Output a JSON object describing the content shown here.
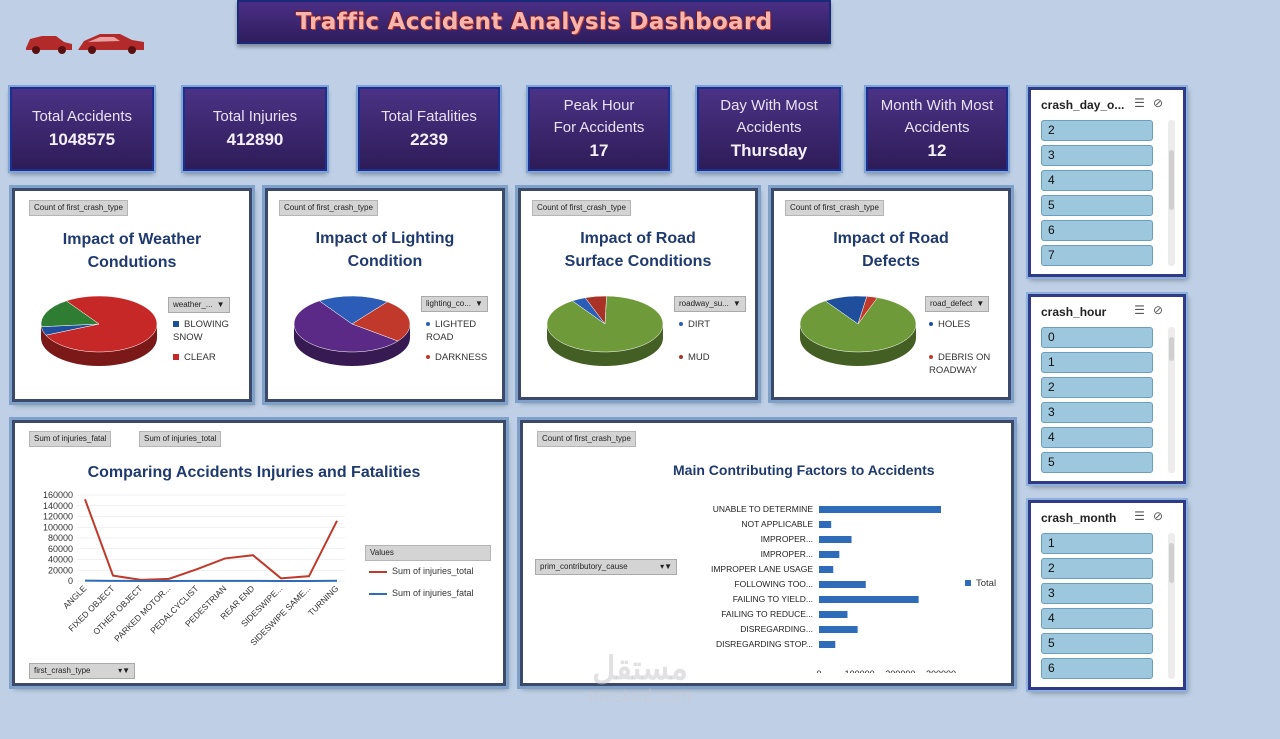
{
  "header": {
    "title": "Traffic Accident Analysis Dashboard"
  },
  "kpis": [
    {
      "label": "Total Accidents",
      "value": "1048575"
    },
    {
      "label": "Total Injuries",
      "value": "412890"
    },
    {
      "label": "Total Fatalities",
      "value": "2239"
    },
    {
      "label": "Peak Hour For Accidents",
      "value": "17"
    },
    {
      "label": "Day With Most Accidents",
      "value": "Thursday"
    },
    {
      "label": "Month With Most Accidents",
      "value": "12"
    }
  ],
  "weather": {
    "tag": "Count of first_crash_type",
    "title": "Impact of Weather Condutions",
    "filter": "weather_...",
    "legend": [
      "BLOWING SNOW",
      "CLEAR"
    ]
  },
  "lighting": {
    "tag": "Count of first_crash_type",
    "title": "Impact of Lighting Condition",
    "filter": "lighting_co...",
    "legend": [
      "LIGHTED ROAD",
      "DARKNESS"
    ]
  },
  "surface": {
    "tag": "Count of first_crash_type",
    "title": "Impact of Road Surface Conditions",
    "filter": "roadway_su...",
    "legend": [
      "DIRT",
      "MUD"
    ]
  },
  "defects": {
    "tag": "Count of first_crash_type",
    "title": "Impact of Road Defects",
    "filter": "road_defect",
    "legend": [
      "HOLES",
      "DEBRIS ON ROADWAY"
    ]
  },
  "injuries": {
    "tag1": "Sum of injuries_fatal",
    "tag2": "Sum of injuries_total",
    "title": "Comparing Accidents Injuries and Fatalities",
    "legend_title": "Values",
    "legend": [
      "Sum of injuries_total",
      "Sum of injuries_fatal"
    ],
    "filter": "first_crash_type"
  },
  "factors": {
    "tag": "Count of first_crash_type",
    "title": "Main Contributing Factors to Accidents",
    "filter": "prim_contributory_cause",
    "legend": "Total"
  },
  "chart_data": [
    {
      "type": "line",
      "title": "Comparing Accidents Injuries and Fatalities",
      "categories": [
        "ANGLE",
        "FIXED OBJECT",
        "OTHER OBJECT",
        "PARKED MOTOR...",
        "PEDALCYCLIST",
        "PEDESTRIAN",
        "REAR END",
        "SIDESWIPE...",
        "SIDESWIPE SAME...",
        "TURNING"
      ],
      "series": [
        {
          "name": "Sum of injuries_total",
          "color": "#c0392b",
          "values": [
            152000,
            10000,
            2000,
            4000,
            22000,
            42000,
            48000,
            5000,
            9000,
            112000
          ]
        },
        {
          "name": "Sum of injuries_fatal",
          "color": "#2e6bb8",
          "values": [
            600,
            200,
            50,
            60,
            150,
            300,
            200,
            30,
            60,
            500
          ]
        }
      ],
      "y_ticks": [
        "160000",
        "140000",
        "120000",
        "100000",
        "80000",
        "60000",
        "40000",
        "20000",
        "0"
      ],
      "ylim": [
        0,
        160000
      ]
    },
    {
      "type": "bar",
      "title": "Main Contributing Factors to Accidents",
      "categories": [
        "UNABLE TO DETERMINE",
        "NOT APPLICABLE",
        "IMPROPER...",
        "IMPROPER...",
        "IMPROPER LANE USAGE",
        "FOLLOWING TOO...",
        "FAILING TO YIELD...",
        "FAILING TO REDUCE...",
        "DISREGARDING...",
        "DISREGARDING STOP..."
      ],
      "series": [
        {
          "name": "Total",
          "color": "#2e6bb8",
          "values": [
            300000,
            30000,
            80000,
            50000,
            35000,
            115000,
            245000,
            70000,
            95000,
            40000
          ]
        }
      ],
      "x_ticks": [
        "0",
        "100000",
        "200000",
        "300000"
      ],
      "xlim": [
        0,
        300000
      ]
    },
    {
      "type": "pie",
      "title": "Impact of Weather Condutions",
      "slices": [
        {
          "label": "CLEAR",
          "value": 78,
          "color": "#c62828"
        },
        {
          "label": "BLOWING SNOW",
          "value": 5,
          "color": "#1f4e9c"
        },
        {
          "label": "other",
          "value": 17,
          "color": "#2e7d32"
        }
      ]
    },
    {
      "type": "pie",
      "title": "Impact of Lighting Condition",
      "slices": [
        {
          "label": "LIGHTED ROAD",
          "value": 20,
          "color": "#2a5cb8"
        },
        {
          "label": "DARKNESS",
          "value": 25,
          "color": "#c0392b"
        },
        {
          "label": "other",
          "value": 55,
          "color": "#5b2a86"
        }
      ]
    },
    {
      "type": "pie",
      "title": "Impact of Road Surface Conditions",
      "slices": [
        {
          "label": "DIRT",
          "value": 4,
          "color": "#2a5cb8"
        },
        {
          "label": "MUD",
          "value": 6,
          "color": "#a93226"
        },
        {
          "label": "other",
          "value": 90,
          "color": "#6e9a3a"
        }
      ]
    },
    {
      "type": "pie",
      "title": "Impact of Road Defects",
      "slices": [
        {
          "label": "HOLES",
          "value": 12,
          "color": "#1f4e9c"
        },
        {
          "label": "DEBRIS ON ROADWAY",
          "value": 3,
          "color": "#c0392b"
        },
        {
          "label": "other",
          "value": 85,
          "color": "#6e9a3a"
        }
      ]
    }
  ],
  "slicers": [
    {
      "title": "crash_day_o...",
      "items": [
        "2",
        "3",
        "4",
        "5",
        "6",
        "7"
      ]
    },
    {
      "title": "crash_hour",
      "items": [
        "0",
        "1",
        "2",
        "3",
        "4",
        "5"
      ]
    },
    {
      "title": "crash_month",
      "items": [
        "1",
        "2",
        "3",
        "4",
        "5",
        "6"
      ]
    }
  ],
  "watermark": {
    "brand": "مستقل",
    "url": "mostaql.com"
  }
}
